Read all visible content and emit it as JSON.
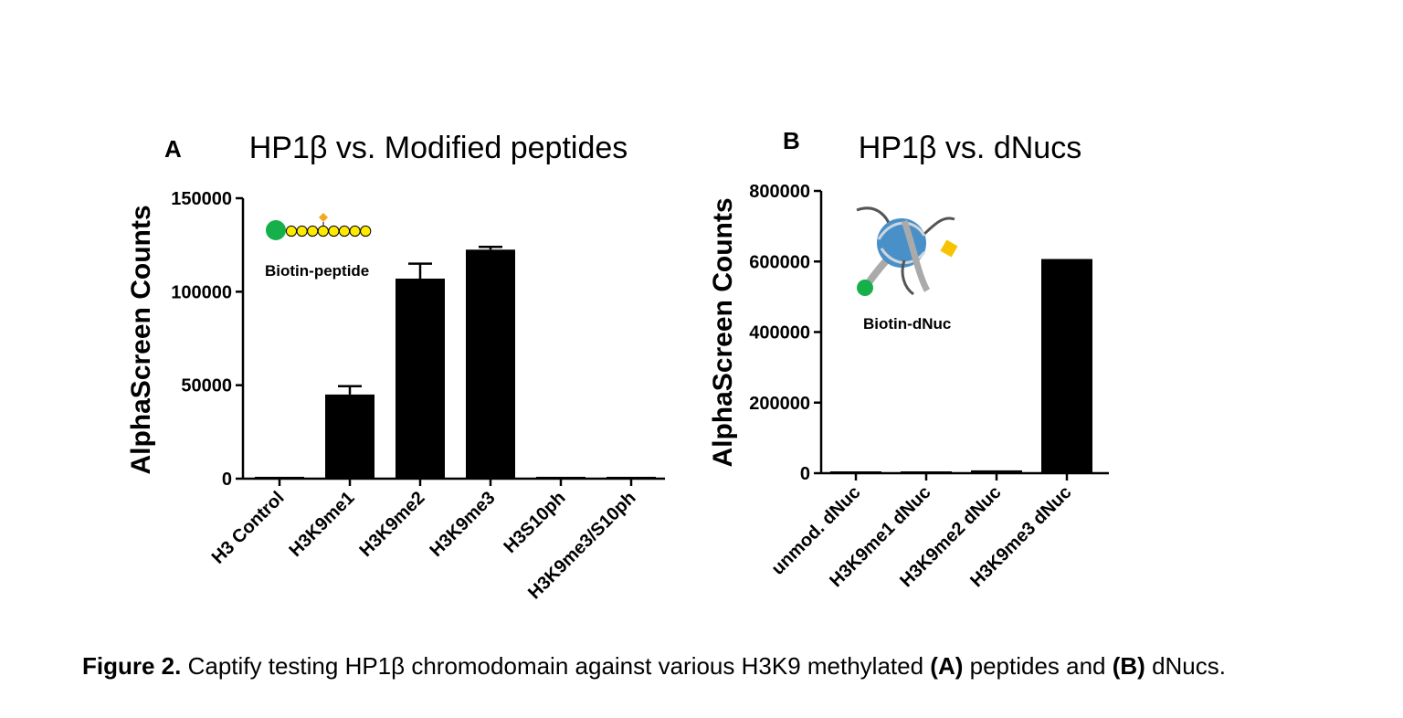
{
  "chart_data": [
    {
      "type": "bar",
      "panel_label": "A",
      "title": "HP1β vs. Modified peptides",
      "ylabel": "AlphaScreen Counts",
      "xlabel": "",
      "ylim": [
        0,
        150000
      ],
      "yticks": [
        0,
        50000,
        100000,
        150000
      ],
      "ytick_labels": [
        "0",
        "50000",
        "100000",
        "150000"
      ],
      "categories": [
        "H3 Control",
        "H3K9me1",
        "H3K9me2",
        "H3K9me3",
        "H3S10ph",
        "H3K9me3/S10ph"
      ],
      "values": [
        1000,
        45000,
        107000,
        122500,
        1000,
        1000
      ],
      "errors": [
        0,
        4500,
        8000,
        1500,
        0,
        0
      ],
      "inset_label": "Biotin-peptide",
      "bar_color": "#000000"
    },
    {
      "type": "bar",
      "panel_label": "B",
      "title": "HP1β vs. dNucs",
      "ylabel": "AlphaScreen Counts",
      "xlabel": "",
      "ylim": [
        0,
        800000
      ],
      "yticks": [
        0,
        200000,
        400000,
        600000,
        800000
      ],
      "ytick_labels": [
        "0",
        "200000",
        "400000",
        "600000",
        "800000"
      ],
      "categories": [
        "unmod. dNuc",
        "H3K9me1 dNuc",
        "H3K9me2 dNuc",
        "H3K9me3 dNuc"
      ],
      "values": [
        3000,
        4000,
        8000,
        607000
      ],
      "errors": [
        0,
        0,
        0,
        0
      ],
      "inset_label": "Biotin-dNuc",
      "bar_color": "#000000"
    }
  ],
  "caption": {
    "prefix": "Figure 2.",
    "brand": "Captify",
    "text1": " testing HP1β chromodomain against various H3K9 methylated ",
    "a": "(A)",
    "text2": " peptides and ",
    "b": "(B)",
    "text3": " dNucs."
  },
  "colors": {
    "biotin_green": "#16b04a",
    "bead_yellow": "#ffea00",
    "mod_orange": "#f5a623",
    "nucleosome_blue": "#4a90c8",
    "mark_yellow": "#f7c300"
  }
}
